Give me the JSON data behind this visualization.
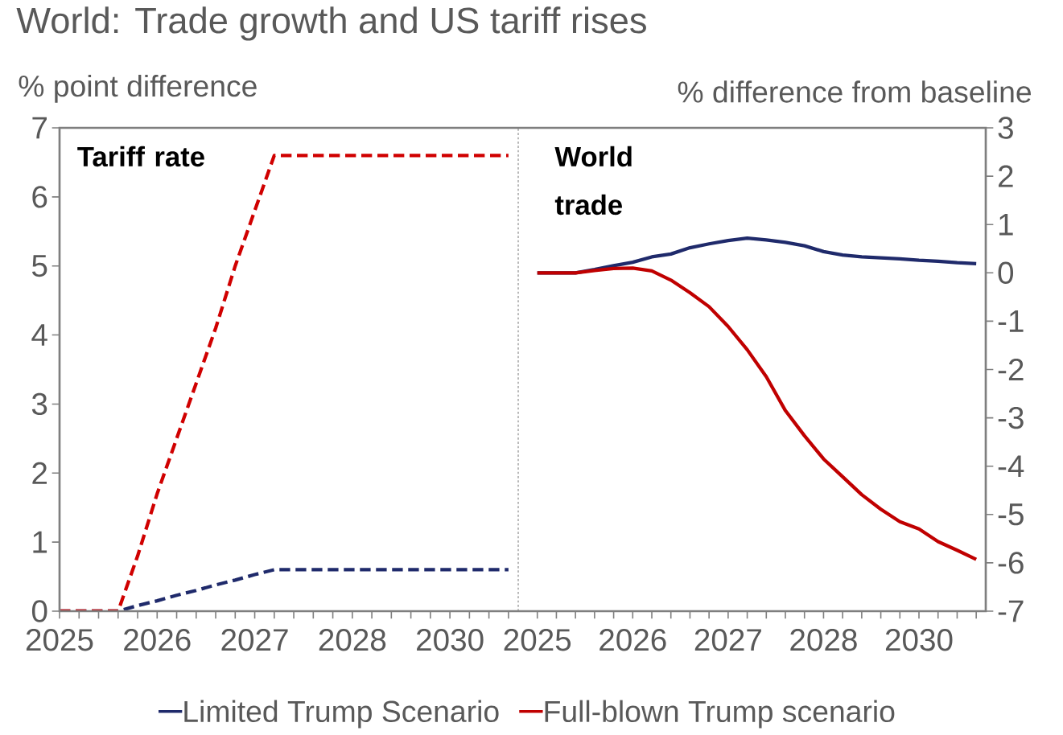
{
  "chart_data": [
    {
      "type": "line",
      "title": "World: Trade growth and US tariff rises",
      "ylabel": "% point difference",
      "annotations": [
        "Tariff rate"
      ],
      "categories": [
        "2025",
        null,
        null,
        null,
        null,
        "2026",
        null,
        null,
        null,
        null,
        "2027",
        null,
        null,
        null,
        null,
        "2028",
        null,
        null,
        null,
        null,
        "2030",
        null,
        null,
        null
      ],
      "line_style": "dashed",
      "ylim": [
        0,
        7
      ],
      "yticks": [
        0,
        1,
        2,
        3,
        4,
        5,
        6,
        7
      ],
      "series": [
        {
          "color": "#1f2a6b",
          "values": [
            0,
            0,
            0,
            0,
            0.08,
            0.15,
            0.23,
            0.3,
            0.38,
            0.45,
            0.53,
            0.6,
            0.6,
            0.6,
            0.6,
            0.6,
            0.6,
            0.6,
            0.6,
            0.6,
            0.6,
            0.6,
            0.6,
            0.6
          ]
        },
        {
          "color": "#d00000",
          "values": [
            0,
            0,
            0,
            0,
            0.8,
            1.7,
            2.5,
            3.3,
            4.1,
            5.0,
            5.8,
            6.6,
            6.6,
            6.6,
            6.6,
            6.6,
            6.6,
            6.6,
            6.6,
            6.6,
            6.6,
            6.6,
            6.6,
            6.6
          ]
        }
      ]
    },
    {
      "type": "line",
      "ylabel": "% difference from baseline",
      "annotations": [
        "World trade"
      ],
      "categories": [
        "2025",
        null,
        null,
        null,
        null,
        "2026",
        null,
        null,
        null,
        null,
        "2027",
        null,
        null,
        null,
        null,
        "2028",
        null,
        null,
        null,
        null,
        "2030",
        null,
        null,
        null
      ],
      "ylim": [
        -7,
        3
      ],
      "yticks": [
        -7,
        -6,
        -5,
        -4,
        -3,
        -2,
        -1,
        0,
        1,
        2,
        3
      ],
      "legend": "bottom",
      "series": [
        {
          "name": "Limited Trump Scenario",
          "color": "#1f2a6b",
          "values": [
            0,
            0,
            0,
            0.07,
            0.15,
            0.22,
            0.33,
            0.39,
            0.52,
            0.6,
            0.67,
            0.72,
            0.68,
            0.63,
            0.56,
            0.44,
            0.37,
            0.33,
            0.31,
            0.29,
            0.26,
            0.24,
            0.21,
            0.19
          ]
        },
        {
          "name": "Full-blown Trump scenario",
          "color": "#c00000",
          "values": [
            0,
            0,
            0,
            0.05,
            0.09,
            0.1,
            0.04,
            -0.15,
            -0.41,
            -0.7,
            -1.11,
            -1.59,
            -2.15,
            -2.85,
            -3.37,
            -3.85,
            -4.22,
            -4.59,
            -4.89,
            -5.15,
            -5.3,
            -5.56,
            -5.74,
            -5.93
          ]
        }
      ]
    }
  ]
}
